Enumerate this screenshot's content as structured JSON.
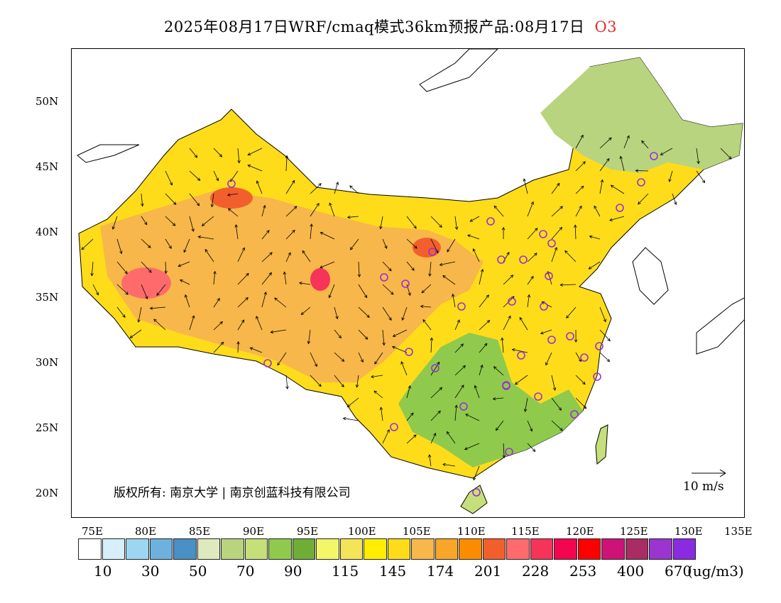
{
  "title": {
    "main": "2025年08月17日WRF/cmaq模式36km预报产品:08月17日",
    "pollutant": "O3"
  },
  "map": {
    "lat_labels": [
      "50N",
      "45N",
      "40N",
      "35N",
      "30N",
      "25N",
      "20N"
    ],
    "lon_labels": [
      "75E",
      "80E",
      "85E",
      "90E",
      "95E",
      "100E",
      "105E",
      "110E",
      "115E",
      "120E",
      "125E",
      "130E",
      "135E"
    ],
    "copyright": "版权所有: 南京大学 | 南京创蓝科技有限公司",
    "wind_reference": "10 m/s",
    "station_marker": "circle-icon"
  },
  "legend": {
    "unit": "(ug/m3)",
    "labels": [
      "10",
      "30",
      "50",
      "70",
      "90",
      "115",
      "145",
      "174",
      "201",
      "228",
      "253",
      "400",
      "670"
    ],
    "colors": [
      "#ffffff",
      "#d6effa",
      "#9bd7f0",
      "#6eb1dc",
      "#4a90c4",
      "#dfe9be",
      "#b9d47e",
      "#c5df7a",
      "#8fca4d",
      "#6fae36",
      "#f4f66a",
      "#f4e45a",
      "#ffee00",
      "#ffdc1a",
      "#f7b74a",
      "#f8a628",
      "#fb8c00",
      "#f35f2c",
      "#ff6b6b",
      "#f6345a",
      "#f3054f",
      "#ff0000",
      "#ce1378",
      "#a82d64",
      "#9b35cf",
      "#8a2be2"
    ]
  }
}
